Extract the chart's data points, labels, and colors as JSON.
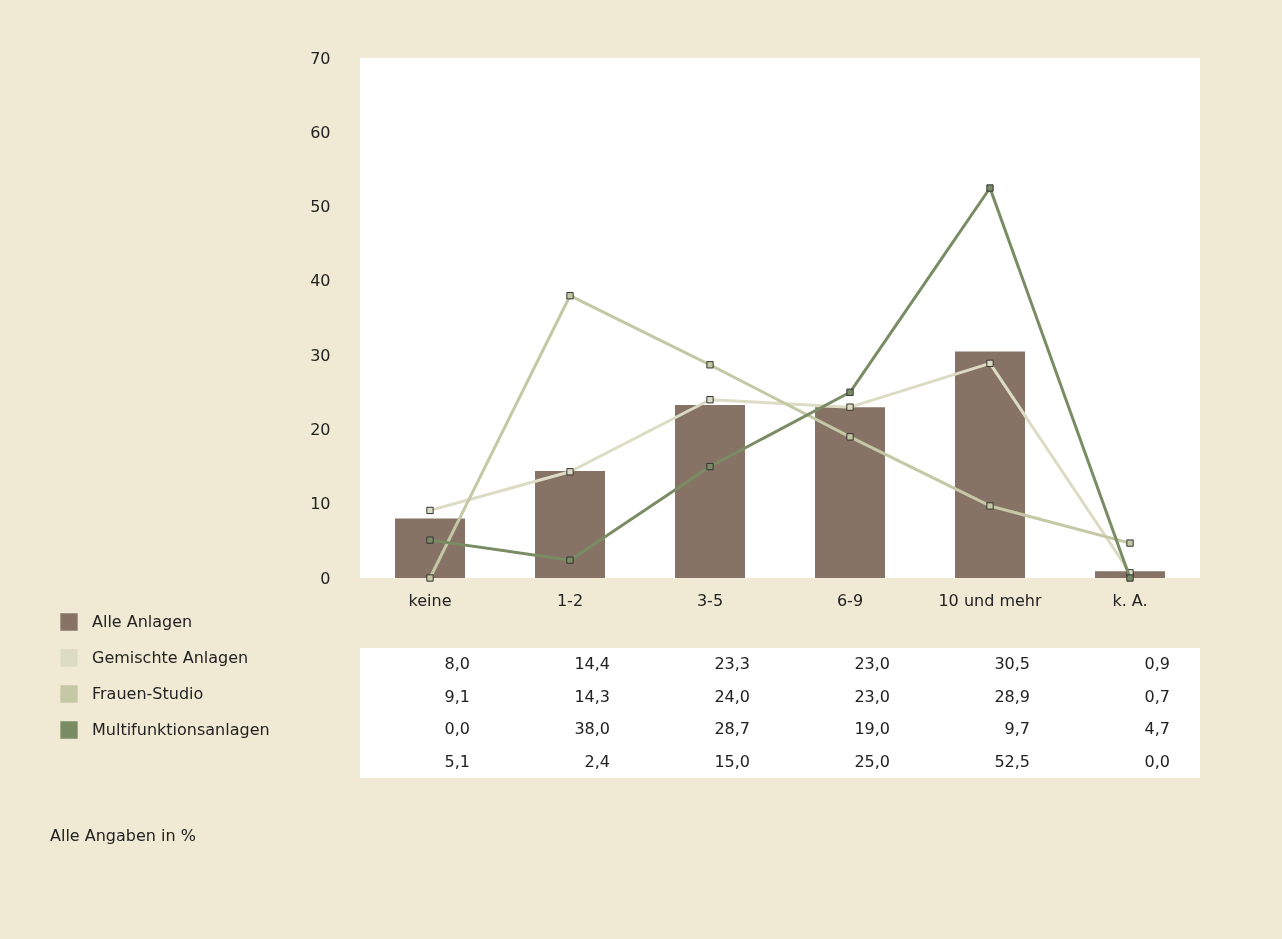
{
  "chart_data": {
    "type": "bar",
    "categories": [
      "keine",
      "1-2",
      "3-5",
      "6-9",
      "10 und mehr",
      "k. A."
    ],
    "series": [
      {
        "name": "Alle Anlagen",
        "color": "#877366",
        "values": [
          8.0,
          14.4,
          23.3,
          23.0,
          30.5,
          0.9
        ],
        "value_labels": [
          "8,0",
          "14,4",
          "23,3",
          "23,0",
          "30,5",
          "0,9"
        ]
      },
      {
        "name": "Gemischte Anlagen",
        "type": "line",
        "color": "#dcdcc4",
        "values": [
          9.1,
          14.3,
          24.0,
          23.0,
          28.9,
          0.7
        ],
        "value_labels": [
          "9,1",
          "14,3",
          "24,0",
          "23,0",
          "28,9",
          "0,7"
        ]
      },
      {
        "name": "Frauen-Studio",
        "type": "line",
        "color": "#c4c8a4",
        "values": [
          0.0,
          38.0,
          28.7,
          19.0,
          9.7,
          4.7
        ],
        "value_labels": [
          "0,0",
          "38,0",
          "28,7",
          "19,0",
          "9,7",
          "4,7"
        ]
      },
      {
        "name": "Multifunktionsanlagen",
        "type": "line",
        "color": "#7a8c64",
        "values": [
          5.1,
          2.4,
          15.0,
          25.0,
          52.5,
          0.0
        ],
        "value_labels": [
          "5,1",
          "2,4",
          "15,0",
          "25,0",
          "52,5",
          "0,0"
        ]
      }
    ],
    "ylim": [
      0,
      70
    ],
    "yticks": [
      0,
      10,
      20,
      30,
      40,
      50,
      60,
      70
    ],
    "grid": false,
    "legend": "bottom left",
    "marker": "square",
    "line_style": "solid",
    "annotations": [
      "Alle Angaben in %"
    ]
  }
}
